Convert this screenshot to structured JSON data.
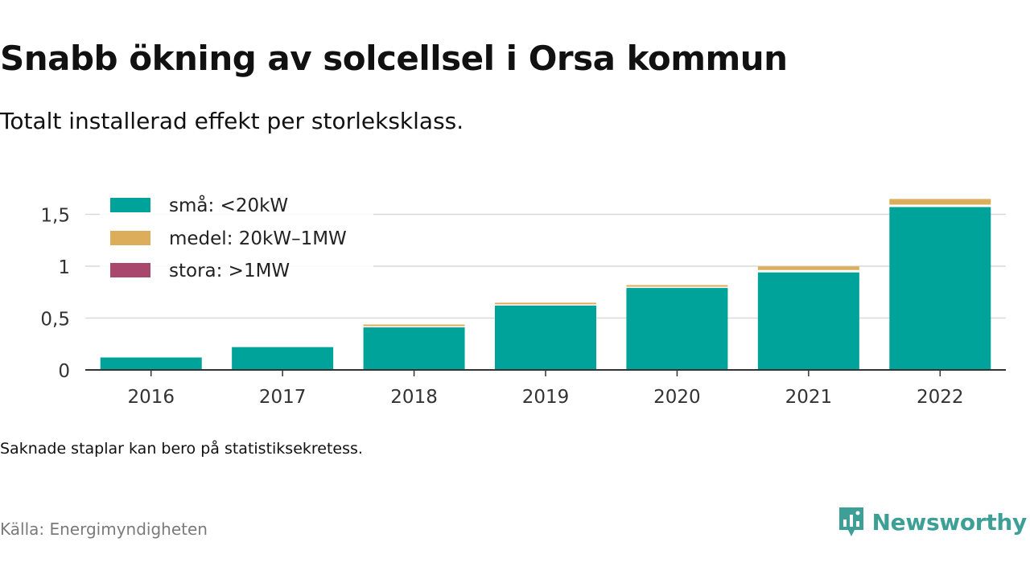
{
  "title": "Snabb ökning av solcellsel i Orsa kommun",
  "subtitle": "Totalt installerad effekt per storleksklass.",
  "note": "Saknade staplar kan bero på statistiksekretess.",
  "source": "Källa: Energimyndigheten",
  "brand": "Newsworthy",
  "colors": {
    "sma": "#00a39a",
    "medel": "#dcae5b",
    "stora": "#aa476d",
    "grid": "#d9d9d9",
    "axis": "#333333",
    "brand": "#3d9f96"
  },
  "chart_data": {
    "type": "bar",
    "stacked": true,
    "categories": [
      "2016",
      "2017",
      "2018",
      "2019",
      "2020",
      "2021",
      "2022"
    ],
    "series": [
      {
        "name": "små: <20kW",
        "values": [
          0.12,
          0.22,
          0.41,
          0.62,
          0.79,
          0.94,
          1.57
        ]
      },
      {
        "name": "medel: 20kW–1MW",
        "values": [
          0.0,
          0.0,
          0.02,
          0.02,
          0.02,
          0.05,
          0.07
        ]
      },
      {
        "name": "stora: >1MW",
        "values": [
          0,
          0,
          0,
          0,
          0,
          0,
          0
        ]
      }
    ],
    "ylim": [
      0,
      1.6
    ],
    "yticks": [
      0,
      0.5,
      1,
      1.5
    ],
    "ytick_labels": [
      "0",
      "0,5",
      "1",
      "1,5"
    ],
    "grid": true,
    "legend_position": "top-left"
  }
}
